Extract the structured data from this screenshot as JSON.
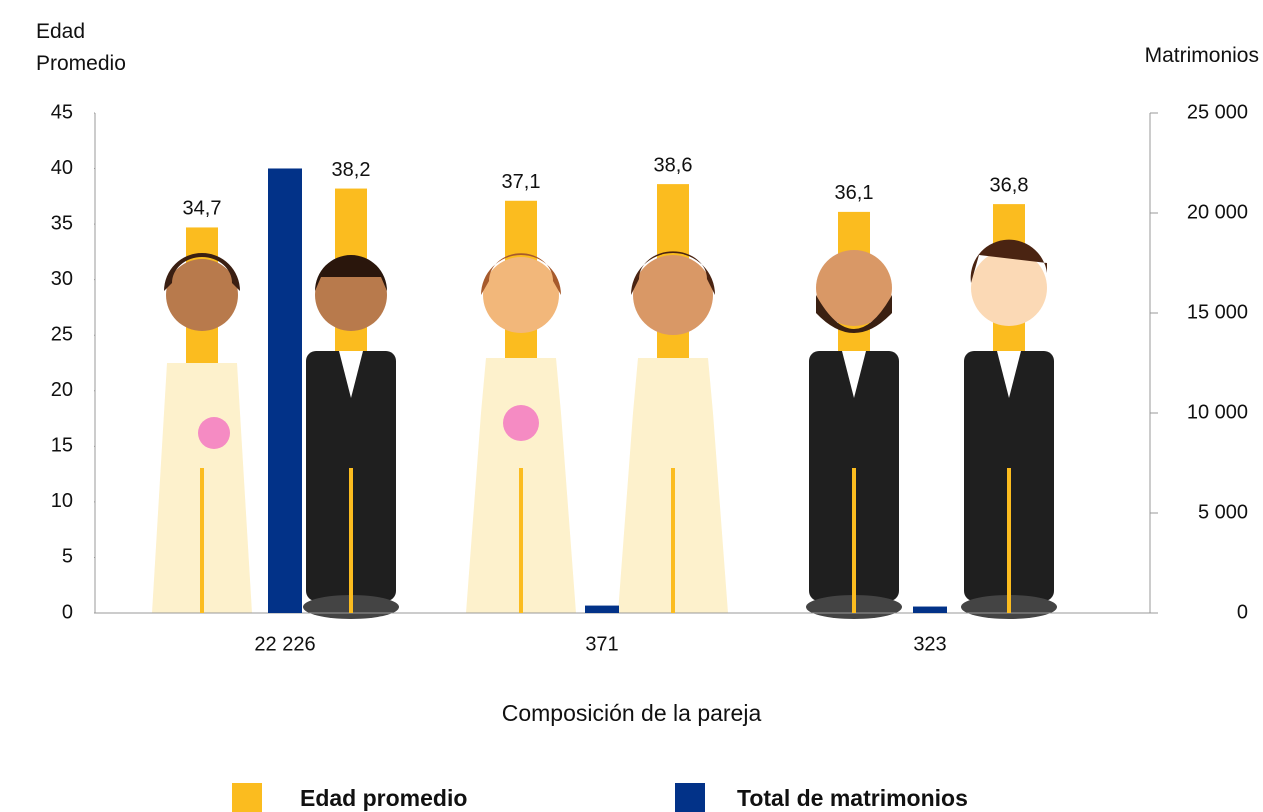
{
  "chart_data": {
    "type": "bar",
    "ylabel": "Edad Promedio",
    "y2label": "Matrimonios",
    "xlabel": "Composición de la pareja",
    "categories": [
      null,
      null,
      null
    ],
    "series": [
      {
        "name": "Edad promedio",
        "color": "#fbbc1f",
        "values": [
          [
            34.7,
            38.2
          ],
          [
            37.1,
            38.6
          ],
          [
            36.1,
            36.8
          ]
        ],
        "value_labels": [
          [
            "34,7",
            "38,2"
          ],
          [
            "37,1",
            "38,6"
          ],
          [
            "36,1",
            "36,8"
          ]
        ]
      },
      {
        "name": "Total de matrimonios",
        "color": "#023288",
        "axis": "y2",
        "values": [
          22226,
          371,
          323
        ],
        "value_labels": [
          "22 226",
          "371",
          "323"
        ]
      }
    ],
    "ylim": [
      0,
      45
    ],
    "yticks": [
      0,
      5,
      10,
      15,
      20,
      25,
      30,
      35,
      40,
      45
    ],
    "y2lim": [
      0,
      25000
    ],
    "y2ticks": [
      0,
      {
        "value": 5000,
        "label": "5 000"
      },
      {
        "value": 10000,
        "label": "10 000"
      },
      {
        "value": 15000,
        "label": "15 000"
      },
      {
        "value": 20000,
        "label": "20 000"
      },
      {
        "value": 25000,
        "label": "25 000"
      }
    ]
  }
}
